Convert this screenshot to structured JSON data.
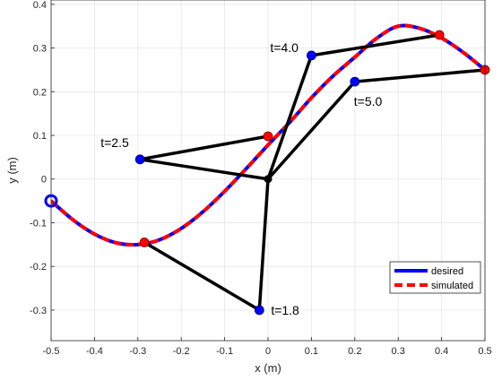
{
  "chart_data": {
    "type": "line",
    "title": "",
    "xlabel": "x (m)",
    "ylabel": "y (m)",
    "xlim": [
      -0.5,
      0.5
    ],
    "ylim": [
      -0.37,
      0.41
    ],
    "xticks": [
      -0.5,
      -0.4,
      -0.3,
      -0.2,
      -0.1,
      0,
      0.1,
      0.2,
      0.3,
      0.4,
      0.5
    ],
    "xtick_labels": [
      "-0.5",
      "-0.4",
      "-0.3",
      "-0.2",
      "-0.1",
      "0",
      "0.1",
      "0.2",
      "0.3",
      "0.4",
      "0.5"
    ],
    "yticks": [
      -0.3,
      -0.2,
      -0.1,
      0,
      0.1,
      0.2,
      0.3,
      0.4
    ],
    "ytick_labels": [
      "-0.3",
      "-0.2",
      "-0.1",
      "0",
      "0.1",
      "0.2",
      "0.3",
      "0.4"
    ],
    "grid": true,
    "legend_position": "bottom-right",
    "series": [
      {
        "name": "desired",
        "color": "#0000ff",
        "style": "solid",
        "x": [
          -0.5,
          -0.45,
          -0.4,
          -0.35,
          -0.3,
          -0.25,
          -0.2,
          -0.15,
          -0.1,
          -0.05,
          0,
          0.05,
          0.1,
          0.15,
          0.2,
          0.25,
          0.3,
          0.35,
          0.4,
          0.45,
          0.5
        ],
        "y": [
          -0.05,
          -0.093,
          -0.126,
          -0.146,
          -0.15,
          -0.139,
          -0.113,
          -0.075,
          -0.028,
          0.024,
          0.078,
          0.13,
          0.186,
          0.236,
          0.279,
          0.322,
          0.35,
          0.345,
          0.323,
          0.29,
          0.25
        ]
      },
      {
        "name": "simulated",
        "color": "#ff0000",
        "style": "dashed",
        "x": [
          -0.5,
          -0.45,
          -0.4,
          -0.35,
          -0.3,
          -0.25,
          -0.2,
          -0.15,
          -0.1,
          -0.05,
          0,
          0.05,
          0.1,
          0.15,
          0.2,
          0.25,
          0.3,
          0.35,
          0.4,
          0.45,
          0.5
        ],
        "y": [
          -0.05,
          -0.093,
          -0.126,
          -0.146,
          -0.15,
          -0.139,
          -0.113,
          -0.075,
          -0.028,
          0.024,
          0.078,
          0.13,
          0.186,
          0.236,
          0.279,
          0.322,
          0.35,
          0.345,
          0.323,
          0.29,
          0.25
        ]
      }
    ],
    "start_marker": {
      "x": -0.5,
      "y": -0.05
    },
    "base": {
      "x": 0.0,
      "y": 0.0
    },
    "arm_poses": [
      {
        "label": "t=1.8",
        "elbow": {
          "x": -0.02,
          "y": -0.3
        },
        "end": {
          "x": -0.285,
          "y": -0.145
        }
      },
      {
        "label": "t=2.5",
        "elbow": {
          "x": -0.295,
          "y": 0.045
        },
        "end": {
          "x": 0.0,
          "y": 0.098
        }
      },
      {
        "label": "t=4.0",
        "elbow": {
          "x": 0.1,
          "y": 0.283
        },
        "end": {
          "x": 0.395,
          "y": 0.33
        }
      },
      {
        "label": "t=5.0",
        "elbow": {
          "x": 0.2,
          "y": 0.223
        },
        "end": {
          "x": 0.5,
          "y": 0.25
        }
      }
    ],
    "colors": {
      "link": "#000000",
      "elbow": "#0000ff",
      "end_effector": "#ff0000",
      "base": "#000000",
      "start_marker": "#0000ff"
    }
  }
}
